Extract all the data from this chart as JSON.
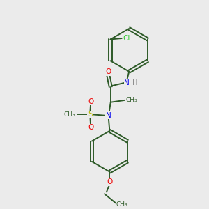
{
  "background_color": "#ebebeb",
  "bond_color": "#2d5a27",
  "atom_colors": {
    "N": "#0000ee",
    "O": "#ee0000",
    "S": "#bbbb00",
    "Cl": "#33cc33",
    "H": "#888888",
    "C": "#2d5a27"
  },
  "figsize": [
    3.0,
    3.0
  ],
  "dpi": 100,
  "xlim": [
    0,
    10
  ],
  "ylim": [
    0,
    10
  ]
}
